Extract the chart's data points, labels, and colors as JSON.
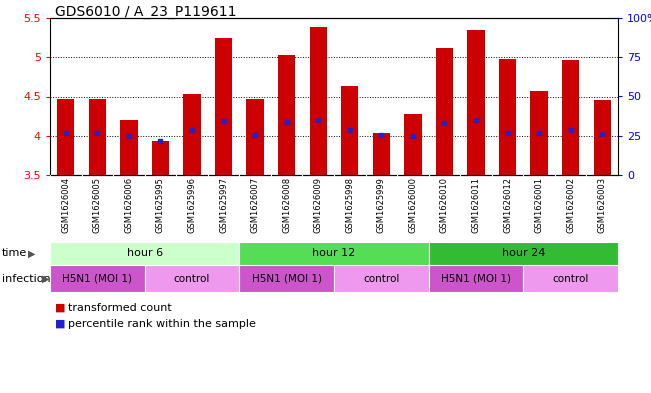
{
  "title": "GDS6010 / A_23_P119611",
  "samples": [
    "GSM1626004",
    "GSM1626005",
    "GSM1626006",
    "GSM1625995",
    "GSM1625996",
    "GSM1625997",
    "GSM1626007",
    "GSM1626008",
    "GSM1626009",
    "GSM1625998",
    "GSM1625999",
    "GSM1626000",
    "GSM1626010",
    "GSM1626011",
    "GSM1626012",
    "GSM1626001",
    "GSM1626002",
    "GSM1626003"
  ],
  "bar_values": [
    4.47,
    4.47,
    4.2,
    3.93,
    4.53,
    5.25,
    4.47,
    5.03,
    5.38,
    4.63,
    4.03,
    4.28,
    5.12,
    5.35,
    4.98,
    4.57,
    4.97,
    4.45
  ],
  "percentile_values": [
    4.03,
    4.03,
    4.0,
    3.93,
    4.07,
    4.19,
    4.01,
    4.17,
    4.2,
    4.07,
    4.01,
    4.0,
    4.16,
    4.2,
    4.03,
    4.03,
    4.07,
    4.02
  ],
  "ylim": [
    3.5,
    5.5
  ],
  "yticks_left": [
    3.5,
    4.0,
    4.5,
    5.0,
    5.5
  ],
  "ytick_labels_left": [
    "3.5",
    "4",
    "4.5",
    "5",
    "5.5"
  ],
  "y2ticks": [
    0,
    25,
    50,
    75,
    100
  ],
  "y2ticklabels": [
    "0",
    "25",
    "50",
    "75",
    "100%"
  ],
  "bar_color": "#cc0000",
  "percentile_color": "#2222cc",
  "time_groups": [
    {
      "label": "hour 6",
      "start": 0,
      "end": 6,
      "color": "#ccffcc"
    },
    {
      "label": "hour 12",
      "start": 6,
      "end": 12,
      "color": "#55dd55"
    },
    {
      "label": "hour 24",
      "start": 12,
      "end": 18,
      "color": "#33bb33"
    }
  ],
  "infection_groups": [
    {
      "label": "H5N1 (MOI 1)",
      "start": 0,
      "end": 3,
      "color": "#cc55cc"
    },
    {
      "label": "control",
      "start": 3,
      "end": 6,
      "color": "#ee99ee"
    },
    {
      "label": "H5N1 (MOI 1)",
      "start": 6,
      "end": 9,
      "color": "#cc55cc"
    },
    {
      "label": "control",
      "start": 9,
      "end": 12,
      "color": "#ee99ee"
    },
    {
      "label": "H5N1 (MOI 1)",
      "start": 12,
      "end": 15,
      "color": "#cc55cc"
    },
    {
      "label": "control",
      "start": 15,
      "end": 18,
      "color": "#ee99ee"
    }
  ],
  "bar_width": 0.55,
  "title_fontsize": 10,
  "label_fontsize": 6,
  "tick_fontsize": 8,
  "row_fontsize": 8,
  "legend_fontsize": 8
}
